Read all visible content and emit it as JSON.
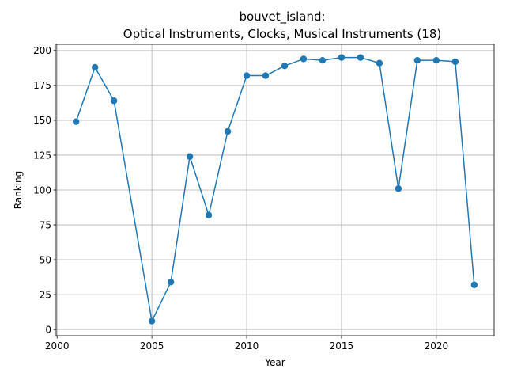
{
  "chart_data": {
    "type": "line",
    "title_line1": "bouvet_island:",
    "title_line2": "Optical Instruments, Clocks, Musical Instruments (18)",
    "xlabel": "Year",
    "ylabel": "Ranking",
    "xlim": [
      1999.95,
      2023.05
    ],
    "ylim": [
      -4.45,
      204.45
    ],
    "x_ticks": [
      2000,
      2005,
      2010,
      2015,
      2020
    ],
    "y_ticks": [
      0,
      25,
      50,
      75,
      100,
      125,
      150,
      175,
      200
    ],
    "grid": true,
    "series": [
      {
        "color": "#1f77b4",
        "marker": "circle",
        "x": [
          2001,
          2002,
          2003,
          2005,
          2006,
          2007,
          2008,
          2009,
          2010,
          2011,
          2012,
          2013,
          2014,
          2015,
          2016,
          2017,
          2018,
          2019,
          2020,
          2021,
          2022
        ],
        "y": [
          149,
          188,
          164,
          6,
          34,
          124,
          82,
          142,
          182,
          182,
          189,
          194,
          193,
          195,
          195,
          191,
          101,
          193,
          193,
          192,
          32
        ]
      }
    ]
  }
}
